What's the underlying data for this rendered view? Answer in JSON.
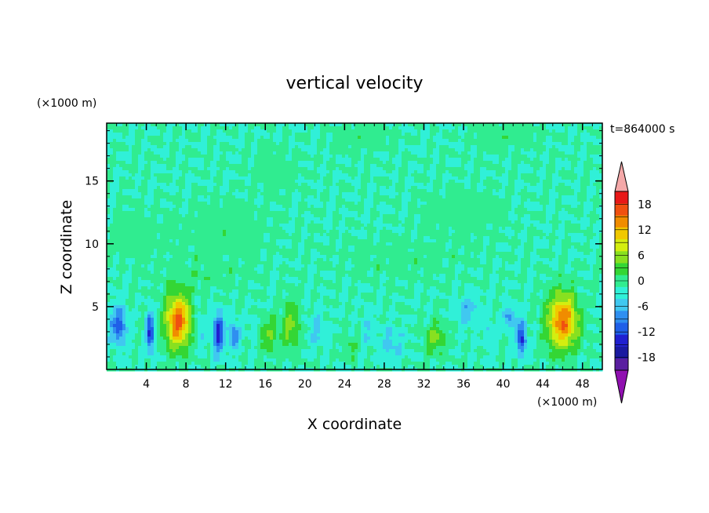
{
  "chart_data": {
    "type": "heatmap",
    "title": "vertical velocity",
    "xlabel": "X coordinate",
    "ylabel": "Z coordinate",
    "x_unit": "(×1000 m)",
    "y_unit": "(×1000 m)",
    "time_label": "t=864000 s",
    "xlim": [
      0,
      50
    ],
    "ylim": [
      0,
      19.6
    ],
    "x_ticks": [
      4,
      8,
      12,
      16,
      20,
      24,
      28,
      32,
      36,
      40,
      44,
      48
    ],
    "y_ticks": [
      5,
      10,
      15
    ],
    "colorbar": {
      "levels": [
        -21,
        -18,
        -15,
        -12,
        -9,
        -6,
        -3,
        0,
        3,
        6,
        9,
        12,
        15,
        18,
        21
      ],
      "labels": [
        18,
        12,
        6,
        0,
        -6,
        -12,
        -18
      ],
      "colors": [
        "#5a1fa0",
        "#1a1aa0",
        "#2020d0",
        "#1f5fe8",
        "#2f8ff0",
        "#40c8f0",
        "#30f0d8",
        "#30ec90",
        "#34d634",
        "#88e020",
        "#d4ee10",
        "#f0c800",
        "#f08c00",
        "#f05010",
        "#e81818"
      ],
      "over_color": "#f4a8a8",
      "under_color": "#9010b0"
    },
    "background_value": 0,
    "features": [
      {
        "x": 7.2,
        "z": 3.8,
        "sx": 1.25,
        "sz": 2.1,
        "amp": 19
      },
      {
        "x": 46.0,
        "z": 3.8,
        "sx": 1.5,
        "sz": 2.2,
        "amp": 18
      },
      {
        "x": 18.6,
        "z": 3.5,
        "sx": 0.9,
        "sz": 2.0,
        "amp": 7
      },
      {
        "x": 16.4,
        "z": 2.8,
        "sx": 1.0,
        "sz": 1.4,
        "amp": 6
      },
      {
        "x": 33.2,
        "z": 2.5,
        "sx": 1.0,
        "sz": 1.2,
        "amp": 7
      },
      {
        "x": 24.6,
        "z": 1.7,
        "sx": 0.7,
        "sz": 0.9,
        "amp": 4
      },
      {
        "x": 1.2,
        "z": 3.5,
        "sx": 0.8,
        "sz": 1.5,
        "amp": -11
      },
      {
        "x": 4.4,
        "z": 3.0,
        "sx": 0.4,
        "sz": 1.6,
        "amp": -13
      },
      {
        "x": 11.3,
        "z": 2.9,
        "sx": 0.6,
        "sz": 1.6,
        "amp": -13
      },
      {
        "x": 12.9,
        "z": 2.7,
        "sx": 0.5,
        "sz": 1.0,
        "amp": -10
      },
      {
        "x": 41.8,
        "z": 2.5,
        "sx": 0.5,
        "sz": 1.3,
        "amp": -13
      },
      {
        "x": 40.6,
        "z": 4.2,
        "sx": 0.5,
        "sz": 0.9,
        "amp": -8
      },
      {
        "x": 28.8,
        "z": 2.0,
        "sx": 1.2,
        "sz": 1.3,
        "amp": -4
      },
      {
        "x": 36.4,
        "z": 4.6,
        "sx": 1.1,
        "sz": 1.2,
        "amp": -5
      },
      {
        "x": 21.2,
        "z": 3.2,
        "sx": 0.8,
        "sz": 1.5,
        "amp": -4
      },
      {
        "x": 14.7,
        "z": 3.2,
        "sx": 0.4,
        "sz": 1.0,
        "amp": -3
      },
      {
        "x": 9.4,
        "z": 3.5,
        "sx": 0.4,
        "sz": 1.6,
        "amp": -4
      },
      {
        "x": 26.3,
        "z": 3.2,
        "sx": 0.6,
        "sz": 1.4,
        "amp": -3
      },
      {
        "x": 38.7,
        "z": 2.8,
        "sx": 0.6,
        "sz": 1.3,
        "amp": -3
      },
      {
        "x": 3.0,
        "z": 10.5,
        "sx": 2.5,
        "sz": 1.8,
        "amp": 2
      },
      {
        "x": 12.0,
        "z": 11.0,
        "sx": 4.0,
        "sz": 2.0,
        "amp": 2
      },
      {
        "x": 17.0,
        "z": 15.8,
        "sx": 2.0,
        "sz": 1.4,
        "amp": 2
      },
      {
        "x": 36.0,
        "z": 12.5,
        "sx": 3.5,
        "sz": 1.6,
        "amp": 2
      },
      {
        "x": 26.0,
        "z": 18.5,
        "sx": 2.5,
        "sz": 1.0,
        "amp": 2
      },
      {
        "x": 40.0,
        "z": 18.6,
        "sx": 3.0,
        "sz": 1.0,
        "amp": 2
      },
      {
        "x": 30.0,
        "z": 8.5,
        "sx": 6.0,
        "sz": 1.5,
        "amp": 1.6
      },
      {
        "x": 10.0,
        "z": 7.5,
        "sx": 5.0,
        "sz": 1.5,
        "amp": 1.6
      }
    ]
  }
}
